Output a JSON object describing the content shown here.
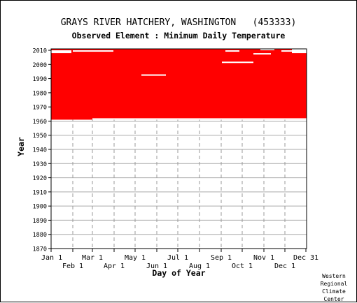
{
  "header": {
    "title": "GRAYS RIVER HATCHERY, WASHINGTON   (453333)",
    "subtitle": "Observed Element : Minimum Daily Temperature"
  },
  "credit": [
    "Western",
    "Regional",
    "Climate",
    "Center"
  ],
  "chart_data": {
    "type": "heatmap",
    "title": "GRAYS RIVER HATCHERY, WASHINGTON   (453333)",
    "subtitle": "Observed Element : Minimum Daily Temperature",
    "xlabel": "Day of Year",
    "ylabel": "Year",
    "xlim": [
      1,
      366
    ],
    "ylim": [
      1870,
      2011
    ],
    "yticks": [
      1870,
      1880,
      1890,
      1900,
      1910,
      1920,
      1930,
      1940,
      1950,
      1960,
      1970,
      1980,
      1990,
      2000,
      2010
    ],
    "xticks_top_row": [
      {
        "label": "Jan 1",
        "day": 1
      },
      {
        "label": "Mar 1",
        "day": 60
      },
      {
        "label": "May 1",
        "day": 121
      },
      {
        "label": "Jul 1",
        "day": 182
      },
      {
        "label": "Sep 1",
        "day": 244
      },
      {
        "label": "Nov 1",
        "day": 305
      },
      {
        "label": "Dec 31",
        "day": 365
      }
    ],
    "xticks_bottom_row": [
      {
        "label": "Feb 1",
        "day": 32
      },
      {
        "label": "Apr 1",
        "day": 91
      },
      {
        "label": "Jun 1",
        "day": 152
      },
      {
        "label": "Aug 1",
        "day": 213
      },
      {
        "label": "Oct 1",
        "day": 274
      },
      {
        "label": "Dec 1",
        "day": 335
      }
    ],
    "grid": true,
    "mark_color": "#ff0000",
    "observed_coverage": {
      "year_start": 1961,
      "year_end": 2010,
      "day_start": 1,
      "day_end": 366
    },
    "missing_blocks": [
      {
        "year_start": 1961,
        "year_end": 1961,
        "day_start": 60,
        "day_end": 366
      },
      {
        "year_start": 2008,
        "year_end": 2010,
        "day_start": 345,
        "day_end": 366
      },
      {
        "year_start": 2008,
        "year_end": 2009,
        "day_start": 1,
        "day_end": 30
      },
      {
        "year_start": 1992,
        "year_end": 1992,
        "day_start": 130,
        "day_end": 165
      },
      {
        "year_start": 2001,
        "year_end": 2001,
        "day_start": 245,
        "day_end": 290
      },
      {
        "year_start": 2007,
        "year_end": 2007,
        "day_start": 290,
        "day_end": 315
      },
      {
        "year_start": 2009,
        "year_end": 2009,
        "day_start": 32,
        "day_end": 90
      },
      {
        "year_start": 2009,
        "year_end": 2009,
        "day_start": 250,
        "day_end": 270
      },
      {
        "year_start": 2009,
        "year_end": 2009,
        "day_start": 330,
        "day_end": 345
      },
      {
        "year_start": 2010,
        "year_end": 2010,
        "day_start": 300,
        "day_end": 320
      }
    ]
  }
}
